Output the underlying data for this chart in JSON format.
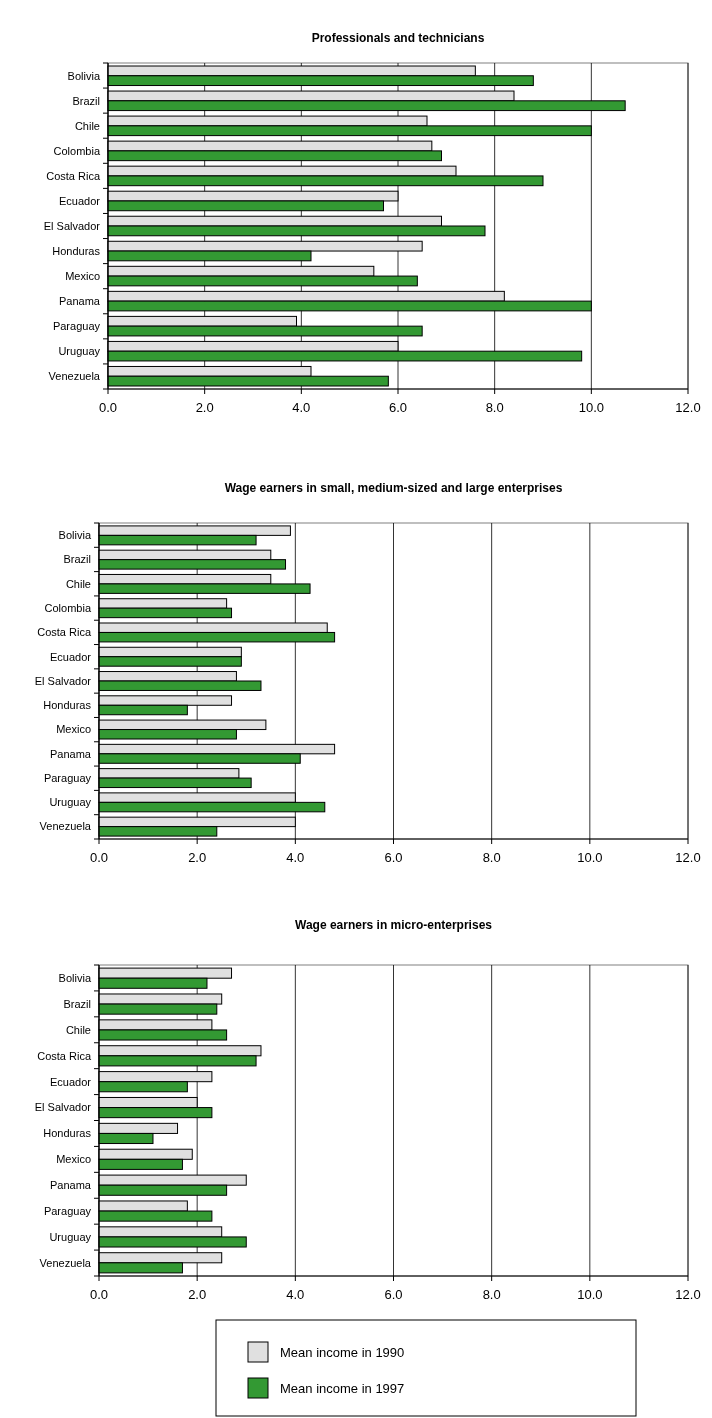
{
  "chart_data": [
    {
      "type": "bar",
      "orientation": "horizontal",
      "title": "Professionals and technicians",
      "categories": [
        "Bolivia",
        "Brazil",
        "Chile",
        "Colombia",
        "Costa Rica",
        "Ecuador",
        "El Salvador",
        "Honduras",
        "Mexico",
        "Panama",
        "Paraguay",
        "Uruguay",
        "Venezuela"
      ],
      "series": [
        {
          "color": "#e0e0e0",
          "values": [
            7.6,
            8.4,
            6.6,
            6.7,
            7.2,
            6.0,
            6.9,
            6.5,
            5.5,
            8.2,
            3.9,
            6.0,
            4.2
          ]
        },
        {
          "color": "#339933",
          "values": [
            8.8,
            10.7,
            10.0,
            6.9,
            9.0,
            5.7,
            7.8,
            4.2,
            6.4,
            10.0,
            6.5,
            9.8,
            5.8
          ]
        }
      ],
      "xlim": [
        0,
        12
      ],
      "xticks": [
        {
          "value": 0,
          "label": "0.0"
        },
        {
          "value": 2,
          "label": "2.0"
        },
        {
          "value": 4,
          "label": "4.0"
        },
        {
          "value": 6,
          "label": "6.0"
        },
        {
          "value": 8,
          "label": "8.0"
        },
        {
          "value": 10,
          "label": "10.0"
        },
        {
          "value": 12,
          "label": "12.0"
        }
      ],
      "grid": "x"
    },
    {
      "type": "bar",
      "orientation": "horizontal",
      "title": "Wage earners in small, medium-sized and large enterprises",
      "categories": [
        "Bolivia",
        "Brazil",
        "Chile",
        "Colombia",
        "Costa Rica",
        "Ecuador",
        "El Salvador",
        "Honduras",
        "Mexico",
        "Panama",
        "Paraguay",
        "Uruguay",
        "Venezuela"
      ],
      "series": [
        {
          "color": "#e0e0e0",
          "values": [
            3.9,
            3.5,
            3.5,
            2.6,
            4.65,
            2.9,
            2.8,
            2.7,
            3.4,
            4.8,
            2.85,
            4.0,
            4.0
          ]
        },
        {
          "color": "#339933",
          "values": [
            3.2,
            3.8,
            4.3,
            2.7,
            4.8,
            2.9,
            3.3,
            1.8,
            2.8,
            4.1,
            3.1,
            4.6,
            2.4
          ]
        }
      ],
      "xlim": [
        0,
        12
      ],
      "xticks": [
        {
          "value": 0,
          "label": "0.0"
        },
        {
          "value": 2,
          "label": "2.0"
        },
        {
          "value": 4,
          "label": "4.0"
        },
        {
          "value": 6,
          "label": "6.0"
        },
        {
          "value": 8,
          "label": "8.0"
        },
        {
          "value": 10,
          "label": "10.0"
        },
        {
          "value": 12,
          "label": "12.0"
        }
      ],
      "grid": "x"
    },
    {
      "type": "bar",
      "orientation": "horizontal",
      "title": "Wage earners in micro-enterprises",
      "categories": [
        "Bolivia",
        "Brazil",
        "Chile",
        "Costa Rica",
        "Ecuador",
        "El Salvador",
        "Honduras",
        "Mexico",
        "Panama",
        "Paraguay",
        "Uruguay",
        "Venezuela"
      ],
      "series": [
        {
          "name": "Mean income in 1990",
          "color": "#e0e0e0",
          "values": [
            2.7,
            2.5,
            2.3,
            3.3,
            2.3,
            2.0,
            1.6,
            1.9,
            3.0,
            1.8,
            2.5,
            2.5
          ]
        },
        {
          "name": "Mean income in 1997",
          "color": "#339933",
          "values": [
            2.2,
            2.4,
            2.6,
            3.2,
            1.8,
            2.3,
            1.1,
            1.7,
            2.6,
            2.3,
            3.0,
            1.7
          ]
        }
      ],
      "xlim": [
        0,
        12
      ],
      "xticks": [
        {
          "value": 0,
          "label": "0.0"
        },
        {
          "value": 2,
          "label": "2.0"
        },
        {
          "value": 4,
          "label": "4.0"
        },
        {
          "value": 6,
          "label": "6.0"
        },
        {
          "value": 8,
          "label": "8.0"
        },
        {
          "value": 10,
          "label": "10.0"
        },
        {
          "value": 12,
          "label": "12.0"
        }
      ],
      "grid": "x",
      "legend": "bottom"
    }
  ]
}
